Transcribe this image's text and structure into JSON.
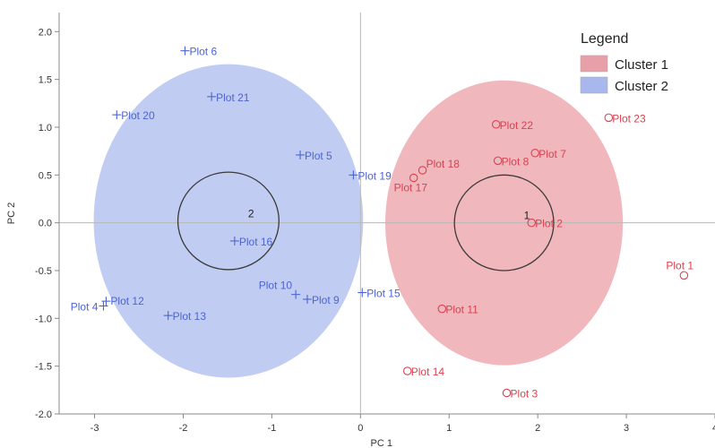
{
  "chart_data": {
    "type": "scatter",
    "xlabel": "PC 1",
    "ylabel": "PC 2",
    "xlim": [
      -3.4,
      4.0
    ],
    "ylim": [
      -2.0,
      2.2
    ],
    "xticks": [
      -3,
      -2,
      -1,
      0,
      1,
      2,
      3,
      4
    ],
    "yticks": [
      2.0,
      1.5,
      1.0,
      0.5,
      0.0,
      -0.5,
      -1.0,
      -1.5,
      -2.0
    ],
    "ytick_labels": [
      "2.0",
      "1.5",
      "1.0",
      "0.5",
      "0.0",
      "-0.5",
      "-1.0",
      "-1.5",
      "-2.0"
    ],
    "reference_lines": {
      "x": 0,
      "y": 0
    },
    "legend": {
      "title": "Legend",
      "placement": "top-right",
      "items": [
        {
          "label": "Cluster 1",
          "color": "#e8a0a8"
        },
        {
          "label": "Cluster 2",
          "color": "#a8b8ec"
        }
      ]
    },
    "clusters": [
      {
        "name": "Cluster 1",
        "marker": "circle",
        "color": "#d9424f",
        "fill": "#e37c87",
        "center_label": "1",
        "center": [
          1.62,
          0.0
        ],
        "ellipse_radius": [
          1.34,
          1.49
        ],
        "inner_radius": [
          0.56,
          0.5
        ],
        "points": [
          {
            "label": "Plot 1",
            "x": 3.65,
            "y": -0.55
          },
          {
            "label": "Plot 2",
            "x": 1.93,
            "y": 0.0
          },
          {
            "label": "Plot 3",
            "x": 1.65,
            "y": -1.78
          },
          {
            "label": "Plot 7",
            "x": 1.97,
            "y": 0.73
          },
          {
            "label": "Plot 8",
            "x": 1.55,
            "y": 0.65
          },
          {
            "label": "Plot 11",
            "x": 0.92,
            "y": -0.9
          },
          {
            "label": "Plot 14",
            "x": 0.53,
            "y": -1.55
          },
          {
            "label": "Plot 17",
            "x": 0.6,
            "y": 0.47
          },
          {
            "label": "Plot 18",
            "x": 0.7,
            "y": 0.55
          },
          {
            "label": "Plot 22",
            "x": 1.53,
            "y": 1.03
          },
          {
            "label": "Plot 23",
            "x": 2.8,
            "y": 1.1
          }
        ]
      },
      {
        "name": "Cluster 2",
        "marker": "plus",
        "color": "#4c64d0",
        "fill": "#8ea2ea",
        "center_label": "2",
        "center": [
          -1.49,
          0.02
        ],
        "ellipse_radius": [
          1.52,
          1.64
        ],
        "inner_radius": [
          0.57,
          0.51
        ],
        "points": [
          {
            "label": "Plot 4",
            "x": -2.9,
            "y": -0.87
          },
          {
            "label": "Plot 5",
            "x": -0.68,
            "y": 0.71
          },
          {
            "label": "Plot 6",
            "x": -1.98,
            "y": 1.8
          },
          {
            "label": "Plot 9",
            "x": -0.6,
            "y": -0.8
          },
          {
            "label": "Plot 10",
            "x": -0.73,
            "y": -0.75
          },
          {
            "label": "Plot 12",
            "x": -2.87,
            "y": -0.82
          },
          {
            "label": "Plot 13",
            "x": -2.17,
            "y": -0.97
          },
          {
            "label": "Plot 15",
            "x": 0.02,
            "y": -0.73
          },
          {
            "label": "Plot 16",
            "x": -1.42,
            "y": -0.19
          },
          {
            "label": "Plot 19",
            "x": -0.08,
            "y": 0.5
          },
          {
            "label": "Plot 20",
            "x": -2.75,
            "y": 1.13
          },
          {
            "label": "Plot 21",
            "x": -1.68,
            "y": 1.32
          }
        ]
      }
    ]
  }
}
